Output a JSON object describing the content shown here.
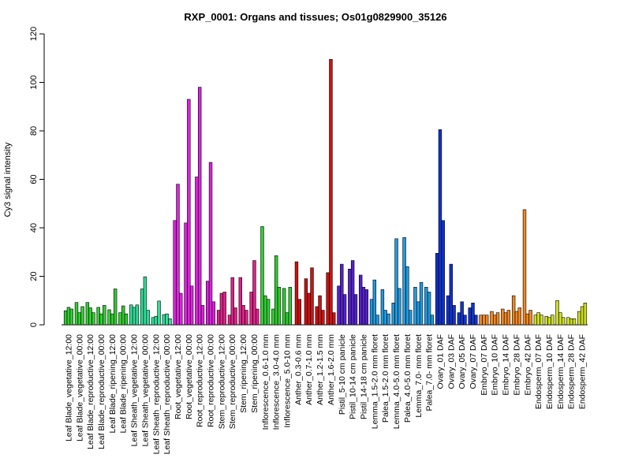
{
  "chart_data": {
    "type": "bar",
    "title": "RXP_0001: Organs and tissues; Os01g0829900_35126",
    "xlabel": "",
    "ylabel": "Cy3 signal intensity",
    "ylim": [
      0,
      120
    ],
    "yticks": [
      0,
      20,
      40,
      60,
      80,
      100,
      120
    ],
    "grid": false,
    "legend": "none",
    "groups": [
      {
        "label": "Leaf Blade_vegetative_12:00",
        "color": "#33cc33",
        "values": [
          5.8,
          7.2,
          6.5
        ]
      },
      {
        "label": "Leaf Blade_vegetative_00:00",
        "color": "#33cc33",
        "values": [
          9.2,
          5.0,
          7.5
        ]
      },
      {
        "label": "Leaf Blade_reproductive_12:00",
        "color": "#33cc33",
        "values": [
          9.2,
          7.0,
          5.0
        ]
      },
      {
        "label": "Leaf Blade_reproductive_00:00",
        "color": "#33cc33",
        "values": [
          7.2,
          4.5,
          8.0
        ]
      },
      {
        "label": "Leaf Blade_ripening_12:00",
        "color": "#33cc33",
        "values": [
          6.2,
          4.5,
          14.8
        ]
      },
      {
        "label": "Leaf Blade_ripening_00:00",
        "color": "#33cc33",
        "values": [
          5.0,
          7.8,
          4.5
        ]
      },
      {
        "label": "Leaf Sheath_vegetative_12:00",
        "color": "#33dd99",
        "values": [
          8.2,
          7.2,
          8.2
        ]
      },
      {
        "label": "Leaf Sheath_vegetative_00:00",
        "color": "#33dd99",
        "values": [
          14.8,
          19.8,
          6.0
        ]
      },
      {
        "label": "Leaf Sheath_reproductive_12:00",
        "color": "#33dd99",
        "values": [
          3.0,
          3.5,
          9.8
        ]
      },
      {
        "label": "Leaf Sheath_reproductive_00:00",
        "color": "#33dd99",
        "values": [
          4.2,
          4.5,
          2.5
        ]
      },
      {
        "label": "Root_vegetative_12:00",
        "color": "#dd22dd",
        "values": [
          43.0,
          58.0,
          13.0
        ]
      },
      {
        "label": "Root_vegetative_00:00",
        "color": "#dd22dd",
        "values": [
          42.0,
          93.0,
          16.0
        ]
      },
      {
        "label": "Root_reproductive_12:00",
        "color": "#dd22dd",
        "values": [
          61.0,
          98.0,
          8.0
        ]
      },
      {
        "label": "Root_reproductive_00:00",
        "color": "#dd22dd",
        "values": [
          18.0,
          67.0,
          9.5
        ]
      },
      {
        "label": "Stem_reproductive_12:00",
        "color": "#dd2288",
        "values": [
          6.0,
          13.0,
          13.5
        ]
      },
      {
        "label": "Stem_reproductive_00:00",
        "color": "#dd2288",
        "values": [
          4.0,
          19.5,
          7.0
        ]
      },
      {
        "label": "Stem_ripening_12:00",
        "color": "#dd2288",
        "values": [
          19.5,
          8.0,
          6.0
        ]
      },
      {
        "label": "Stem_ripening_00:00",
        "color": "#dd2288",
        "values": [
          13.5,
          26.5,
          6.5
        ]
      },
      {
        "label": "Inflorescence_0.6-1.0 mm",
        "color": "#33cc33",
        "values": [
          40.5,
          12.0,
          10.5
        ]
      },
      {
        "label": "Inflorescence_3.0-4.0 mm",
        "color": "#33cc33",
        "values": [
          6.5,
          28.5,
          15.5
        ]
      },
      {
        "label": "Inflorescence_5.0-10 mm",
        "color": "#33cc33",
        "values": [
          15.0,
          5.0,
          15.5
        ]
      },
      {
        "label": "Anther_0.3-0.6 mm",
        "color": "#cc1111",
        "values": [
          26.0,
          10.5
        ]
      },
      {
        "label": "Anther_0.7-1.0 mm",
        "color": "#cc1111",
        "values": [
          19.0,
          13.0,
          23.5
        ]
      },
      {
        "label": "Anther_1.2-1.5 mm",
        "color": "#cc1111",
        "values": [
          7.5,
          12.0,
          6.0
        ]
      },
      {
        "label": "Anther_1.6-2.0 mm",
        "color": "#cc1111",
        "values": [
          21.5,
          109.5,
          5.0
        ]
      },
      {
        "label": "Pistil_5-10 cm panicle",
        "color": "#5522cc",
        "values": [
          16.0,
          25.0,
          12.5
        ]
      },
      {
        "label": "Pistil_10-14 cm panicle",
        "color": "#5522cc",
        "values": [
          23.0,
          26.5,
          12.5
        ]
      },
      {
        "label": "Pistil_14-18 cm panicle",
        "color": "#5522cc",
        "values": [
          20.5,
          15.5,
          14.5
        ]
      },
      {
        "label": "Lemma_1.5-2.0 mm floret",
        "color": "#2299dd",
        "values": [
          10.5,
          18.5,
          4.0
        ]
      },
      {
        "label": "Palea_1.5-2.0 mm floret",
        "color": "#2299dd",
        "values": [
          14.5,
          6.0,
          4.5
        ]
      },
      {
        "label": "Lemma_4.0-5.0 mm floret",
        "color": "#2299dd",
        "values": [
          9.0,
          35.5,
          15.0
        ]
      },
      {
        "label": "Palea_4.0-5.0 mm floret",
        "color": "#2299dd",
        "values": [
          36.0,
          24.0,
          6.0
        ]
      },
      {
        "label": "Lemma_7.0- mm floret",
        "color": "#2299dd",
        "values": [
          15.5,
          9.5,
          17.5
        ]
      },
      {
        "label": "Palea_7.0- mm floret",
        "color": "#2299dd",
        "values": [
          15.5,
          13.5,
          4.0
        ]
      },
      {
        "label": "Ovary_01 DAF",
        "color": "#1133cc",
        "values": [
          29.5,
          80.5,
          43.0
        ]
      },
      {
        "label": "Ovary_03 DAF",
        "color": "#1133cc",
        "values": [
          12.0,
          25.0,
          8.0
        ]
      },
      {
        "label": "Ovary_05 DAF",
        "color": "#1133cc",
        "values": [
          5.0,
          9.5,
          4.0
        ]
      },
      {
        "label": "Ovary_07 DAF",
        "color": "#1133cc",
        "values": [
          7.0,
          9.0,
          4.0
        ]
      },
      {
        "label": "Embryo_07 DAF",
        "color": "#ee8822",
        "values": [
          4.0,
          4.0,
          4.0
        ]
      },
      {
        "label": "Embryo_10 DAF",
        "color": "#ee8822",
        "values": [
          5.5,
          4.0,
          5.0
        ]
      },
      {
        "label": "Embryo_14 DAF",
        "color": "#ee8822",
        "values": [
          6.5,
          5.0,
          6.0
        ]
      },
      {
        "label": "Embryo_28 DAF",
        "color": "#ee8822",
        "values": [
          12.0,
          5.5,
          7.0
        ]
      },
      {
        "label": "Embryo_42 DAF",
        "color": "#ee8822",
        "values": [
          47.5,
          4.5,
          6.0
        ]
      },
      {
        "label": "Endosperm_07 DAF",
        "color": "#ccdd22",
        "values": [
          4.0,
          5.0,
          4.0
        ]
      },
      {
        "label": "Endosperm_10 DAF",
        "color": "#ccdd22",
        "values": [
          3.5,
          3.0,
          4.0
        ]
      },
      {
        "label": "Endosperm_14 DAF",
        "color": "#ccdd22",
        "values": [
          10.0,
          5.0,
          3.0
        ]
      },
      {
        "label": "Endosperm_28 DAF",
        "color": "#ccdd22",
        "values": [
          3.0,
          2.5,
          2.5
        ]
      },
      {
        "label": "Endosperm_42 DAF",
        "color": "#ccdd22",
        "values": [
          5.5,
          7.5,
          9.0
        ]
      }
    ]
  }
}
